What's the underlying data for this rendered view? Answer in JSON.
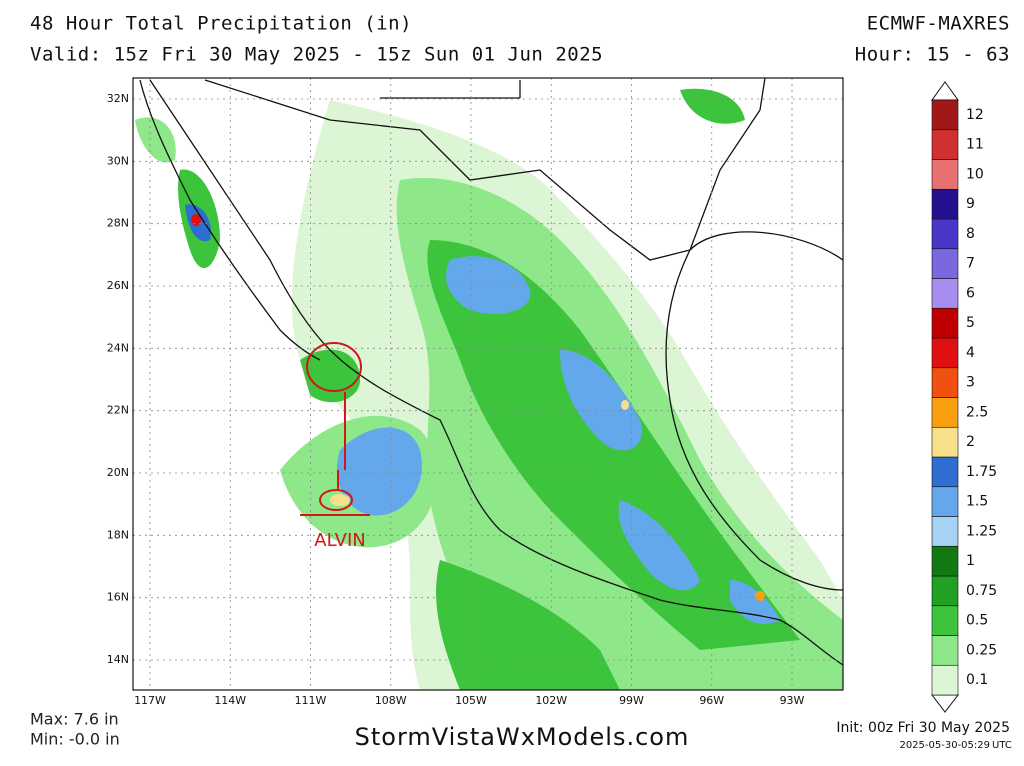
{
  "header": {
    "title": "48 Hour Total Precipitation (in)",
    "valid": "Valid: 15z Fri 30 May 2025 - 15z Sun 01 Jun 2025",
    "model": "ECMWF-MAXRES",
    "hour": "Hour: 15 - 63"
  },
  "map": {
    "lat_labels": [
      "32N",
      "30N",
      "28N",
      "26N",
      "24N",
      "22N",
      "20N",
      "18N",
      "16N",
      "14N"
    ],
    "lon_labels": [
      "117W",
      "114W",
      "111W",
      "108W",
      "105W",
      "102W",
      "99W",
      "96W",
      "93W"
    ],
    "annotation": "ALVIN"
  },
  "legend": {
    "levels": [
      {
        "label": 0.1,
        "color": "#dcf5d4"
      },
      {
        "label": 0.25,
        "color": "#8ee88a"
      },
      {
        "label": 0.5,
        "color": "#3cc43c"
      },
      {
        "label": 0.75,
        "color": "#22a022"
      },
      {
        "label": 1,
        "color": "#127812"
      },
      {
        "label": 1.25,
        "color": "#a6d2f5"
      },
      {
        "label": 1.5,
        "color": "#64a8ec"
      },
      {
        "label": 1.75,
        "color": "#2e6ed2"
      },
      {
        "label": 2,
        "color": "#f8e08a"
      },
      {
        "label": 2.5,
        "color": "#f8a010"
      },
      {
        "label": 3,
        "color": "#f05010"
      },
      {
        "label": 4,
        "color": "#e01010"
      },
      {
        "label": 5,
        "color": "#c00000"
      },
      {
        "label": 6,
        "color": "#a88cf0"
      },
      {
        "label": 7,
        "color": "#7a68e0"
      },
      {
        "label": 8,
        "color": "#4a36c8"
      },
      {
        "label": 9,
        "color": "#22108e"
      },
      {
        "label": 10,
        "color": "#e87070"
      },
      {
        "label": 11,
        "color": "#d03030"
      },
      {
        "label": 12,
        "color": "#a01818"
      }
    ]
  },
  "footer": {
    "max": "Max: 7.6 in",
    "min": "Min: -0.0 in",
    "site": "StormVistaWxModels.com",
    "init": "Init: 00z Fri 30 May 2025",
    "timestamp": "2025-05-30-05:29",
    "timestamp_unit": "UTC"
  }
}
